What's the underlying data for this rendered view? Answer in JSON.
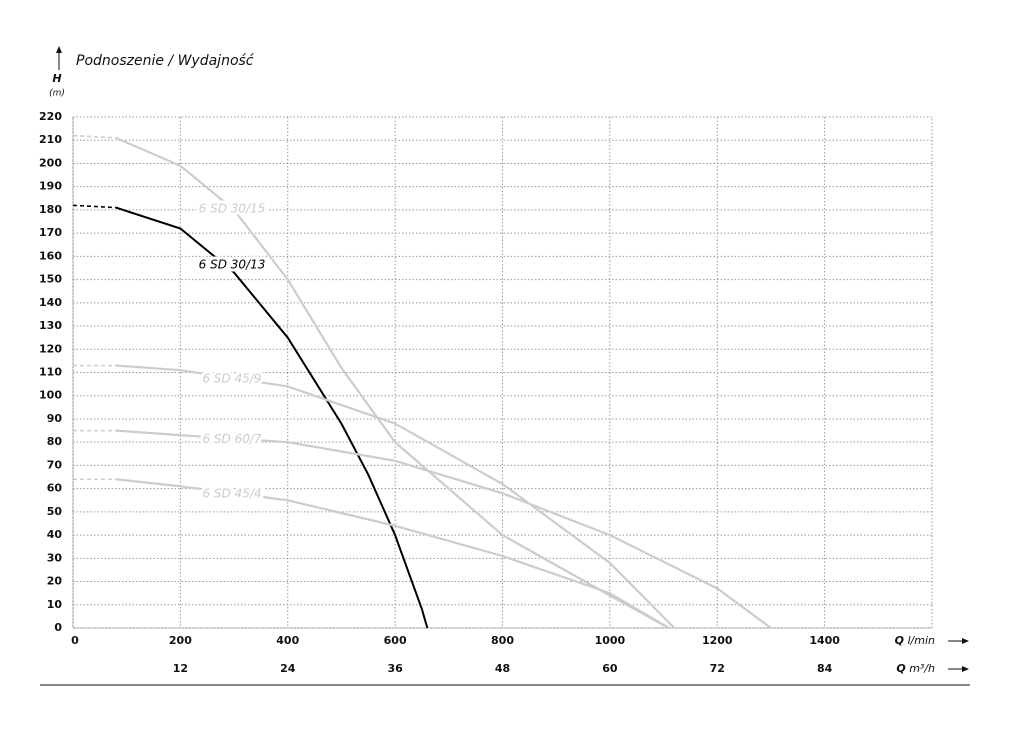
{
  "chart_data": {
    "type": "line",
    "title": "Podnoszenie / Wydajność",
    "y_label": "H",
    "y_unit": "(m)",
    "x_label": {
      "symbol": "Q",
      "unit": "l/min"
    },
    "x2_label": {
      "symbol": "Q",
      "unit": "m³/h"
    },
    "xlim": [
      0,
      1600
    ],
    "xticks": [
      0,
      200,
      400,
      600,
      800,
      1000,
      1200,
      1400
    ],
    "x2lim": [
      0,
      96
    ],
    "x2ticks": [
      12,
      24,
      36,
      48,
      60,
      72,
      84
    ],
    "ylim": [
      0,
      220
    ],
    "yticks": [
      0,
      10,
      20,
      30,
      40,
      50,
      60,
      70,
      80,
      90,
      100,
      110,
      120,
      130,
      140,
      150,
      160,
      170,
      180,
      190,
      200,
      210,
      220
    ],
    "grid": true,
    "series": [
      {
        "name": "6 SD 30/15",
        "color": "#cccccc",
        "x": [
          0,
          80,
          200,
          300,
          400,
          500,
          600,
          800,
          1000,
          1110
        ],
        "values": [
          212,
          211,
          199,
          180,
          150,
          112,
          80,
          40,
          14,
          0
        ]
      },
      {
        "name": "6 SD 30/13",
        "color": "#000000",
        "x": [
          0,
          80,
          200,
          300,
          400,
          500,
          550,
          600,
          650,
          660
        ],
        "values": [
          182,
          181,
          172,
          153,
          125,
          88,
          66,
          40,
          8,
          0
        ]
      },
      {
        "name": "6 SD 45/9",
        "color": "#cccccc",
        "x": [
          0,
          80,
          200,
          400,
          600,
          800,
          1000,
          1120
        ],
        "values": [
          113,
          113,
          111,
          104,
          88,
          62,
          28,
          0
        ]
      },
      {
        "name": "6 SD 60/7",
        "color": "#cccccc",
        "x": [
          0,
          80,
          200,
          400,
          600,
          800,
          1000,
          1200,
          1300
        ],
        "values": [
          85,
          85,
          83,
          80,
          72,
          58,
          40,
          17,
          0
        ]
      },
      {
        "name": "6 SD 45/4",
        "color": "#cccccc",
        "x": [
          0,
          80,
          200,
          400,
          600,
          800,
          1000,
          1110
        ],
        "values": [
          64,
          64,
          61,
          55,
          44,
          31,
          15,
          0
        ]
      }
    ]
  }
}
